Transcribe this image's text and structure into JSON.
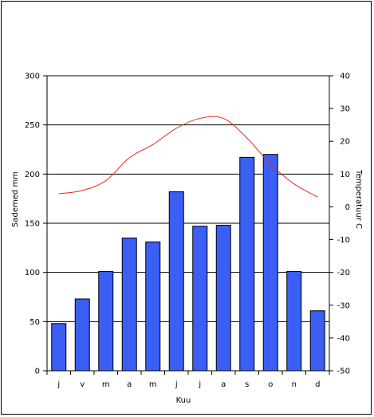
{
  "chart_data": {
    "type": "bar",
    "categories": [
      "j",
      "v",
      "m",
      "a",
      "m",
      "j",
      "j",
      "a",
      "s",
      "o",
      "n",
      "d"
    ],
    "xlabel": "Kuu",
    "series": [
      {
        "name": "Sademed mm",
        "type": "bar",
        "axis": "left",
        "values": [
          48,
          73,
          101,
          135,
          131,
          182,
          147,
          148,
          217,
          220,
          101,
          61
        ]
      },
      {
        "name": "Temperatuur C",
        "type": "line",
        "axis": "right",
        "values": [
          4,
          5,
          8,
          15,
          19,
          24,
          27,
          27,
          21,
          13,
          7,
          3
        ]
      }
    ],
    "y_left": {
      "label": "Sademed mm",
      "ylim": [
        0,
        300
      ],
      "ticks": [
        "0",
        "50",
        "100",
        "150",
        "200",
        "250",
        "300"
      ]
    },
    "y_right": {
      "label": "Temperatuur C",
      "ylim": [
        -50,
        40
      ],
      "ticks": [
        "-50",
        "-40",
        "-30",
        "-20",
        "-10",
        "0",
        "10",
        "20",
        "30",
        "40"
      ]
    },
    "colors": {
      "bar": "#3b5ef5",
      "line": "#e8281c",
      "grid": "#000000"
    },
    "grid": true,
    "legend": "none"
  }
}
